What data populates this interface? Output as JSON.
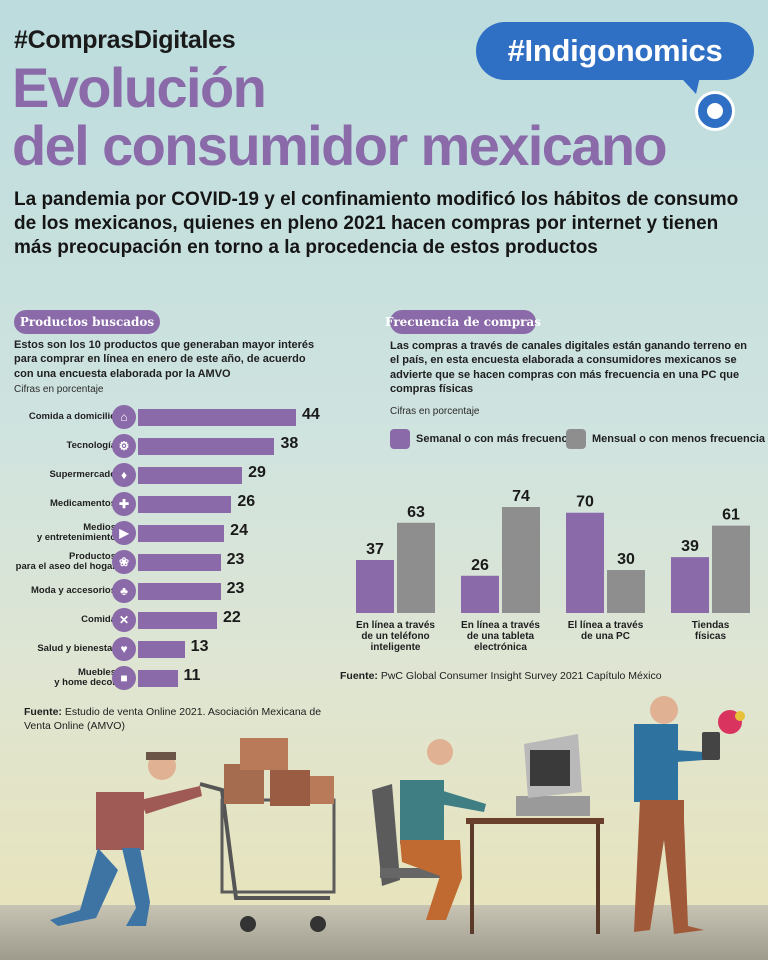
{
  "header": {
    "hashtag": "#ComprasDigitales",
    "brand": "#Indigonomics",
    "title_line1": "Evolución",
    "title_line2": "del consumidor mexicano",
    "lead": "La pandemia por COVID-19 y el confinamiento modificó los hábitos de consumo de los mexicanos, quienes en pleno 2021 hacen compras por internet y tienen más preocupación en torno a la procedencia de estos productos"
  },
  "left_panel": {
    "pill": "Productos buscados",
    "description": "Estos son los 10 productos que generaban mayor interés para comprar en línea en enero de este año, de acuerdo con una encuesta elaborada por la AMVO",
    "unit_note": "Cifras en porcentaje",
    "source_label": "Fuente:",
    "source_text": "Estudio de venta Online 2021. Asociación Mexicana de Venta Online (AMVO)"
  },
  "right_panel": {
    "pill": "Frecuencia de compras",
    "description": "Las compras a través de canales digitales están ganando terreno en el país, en esta encuesta elaborada a consumidores mexicanos se advierte que se hacen compras con más frecuencia en una PC que compras físicas",
    "unit_note": "Cifras en porcentaje",
    "source_label": "Fuente:",
    "source_text": "PwC Global Consumer Insight Survey 2021 Capítulo México"
  },
  "colors": {
    "purple": "#8a6aa8",
    "gray": "#8e8e8e",
    "brand_blue": "#2f6fc4"
  },
  "icons": [
    "food-delivery-icon",
    "technology-icon",
    "supermarket-icon",
    "medicine-icon",
    "media-icon",
    "cleaning-icon",
    "fashion-icon",
    "food-icon",
    "health-icon",
    "furniture-icon"
  ],
  "chart_data": [
    {
      "type": "bar",
      "orientation": "horizontal",
      "title": "Productos buscados",
      "categories": [
        "Comida a domicilio",
        "Tecnología",
        "Supermercado",
        "Medicamentos",
        "Medios\ny entretenimiento",
        "Productos\npara el aseo del hogar",
        "Moda y accesorios",
        "Comida",
        "Salud y bienestar",
        "Muebles\ny home decor"
      ],
      "values": [
        44,
        38,
        29,
        26,
        24,
        23,
        23,
        22,
        13,
        11
      ],
      "xlim": [
        0,
        44
      ]
    },
    {
      "type": "bar",
      "title": "Frecuencia de compras",
      "categories": [
        "En línea a través\nde un teléfono\ninteligente",
        "En línea a través\nde una tableta\nelectrónica",
        "El línea a través\nde una PC",
        "Tiendas\nfísicas"
      ],
      "series": [
        {
          "name": "Semanal o con más frecuencia",
          "values": [
            37,
            26,
            70,
            39
          ]
        },
        {
          "name": "Mensual o con menos frecuencia",
          "values": [
            63,
            74,
            30,
            61
          ]
        }
      ],
      "ylim": [
        0,
        74
      ],
      "legend": "top"
    }
  ]
}
